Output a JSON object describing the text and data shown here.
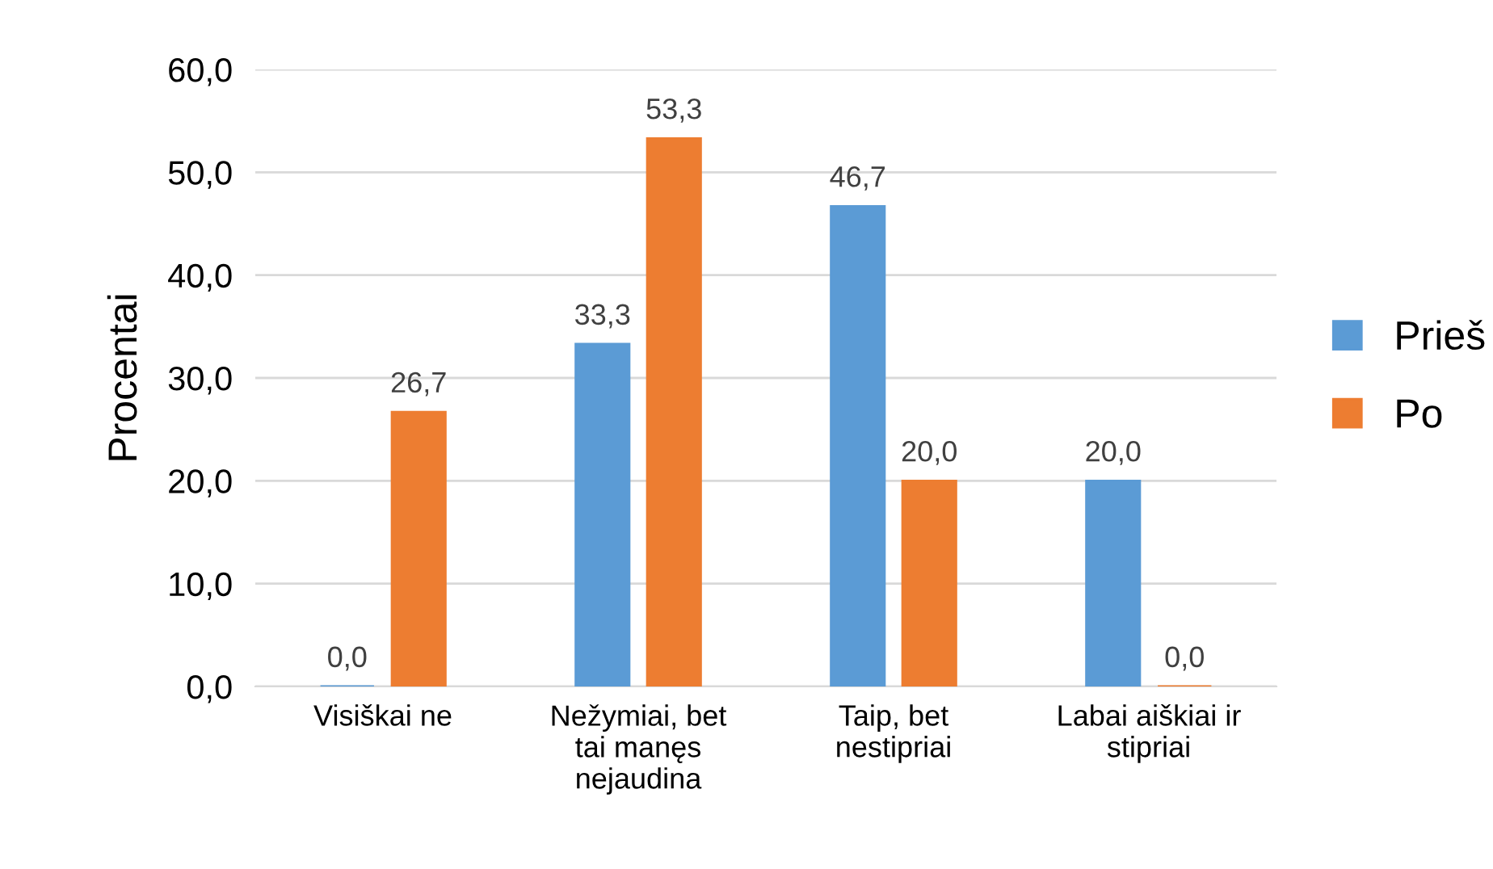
{
  "chart_data": {
    "type": "bar",
    "ylabel": "Procentai",
    "categories": [
      "Visiškai ne",
      "Nežymiai, bet\ntai manęs\nnejaudina",
      "Taip, bet\nnestipriai",
      "Labai aiškiai ir\nstipriai"
    ],
    "series": [
      {
        "name": "Prieš",
        "color": "#5b9bd5",
        "values": [
          0,
          33.3,
          46.7,
          20
        ],
        "value_labels": [
          "0,0",
          "33,3",
          "46,7",
          "20,0"
        ]
      },
      {
        "name": "Po",
        "color": "#ed7d31",
        "values": [
          26.7,
          53.3,
          20,
          0
        ],
        "value_labels": [
          "26,7",
          "53,3",
          "20,0",
          "0,0"
        ]
      }
    ],
    "ylim": [
      0,
      60
    ],
    "yticks": [
      {
        "value": 0,
        "label": "0,0"
      },
      {
        "value": 10,
        "label": "10,0"
      },
      {
        "value": 20,
        "label": "20,0"
      },
      {
        "value": 30,
        "label": "30,0"
      },
      {
        "value": 40,
        "label": "40,0"
      },
      {
        "value": 50,
        "label": "50,0"
      },
      {
        "value": 60,
        "label": "60,0"
      }
    ],
    "grid": "y",
    "legend": "right"
  }
}
